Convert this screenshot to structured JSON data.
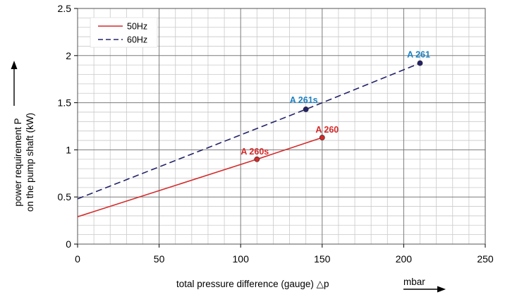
{
  "chart_data": {
    "type": "line",
    "x_ticks": [
      "0",
      "50",
      "100",
      "150",
      "200",
      "250"
    ],
    "y_ticks": [
      "0",
      "0.5",
      "1",
      "1.5",
      "2",
      "2.5"
    ],
    "xlim": [
      0,
      250
    ],
    "ylim": [
      0,
      2.5
    ],
    "x_minor_step": 10,
    "y_minor_step": 0.1,
    "grid": true,
    "legend_position": "top-left",
    "xlabel": "total pressure difference (gauge) △p",
    "x_unit": "mbar",
    "ylabel_line1": "power requirement P",
    "ylabel_line2": "on the pump shaft (kW)",
    "series": [
      {
        "name": "50Hz",
        "color": "#d42a2a",
        "style": "solid",
        "x": [
          0,
          110,
          150
        ],
        "y": [
          0.29,
          0.9,
          1.13
        ],
        "points": [
          {
            "label": "A 260s",
            "x": 110,
            "y": 0.9
          },
          {
            "label": "A 260",
            "x": 150,
            "y": 1.13
          }
        ]
      },
      {
        "name": "60Hz",
        "color": "#23236b",
        "style": "dashed",
        "x": [
          0,
          140,
          210
        ],
        "y": [
          0.48,
          1.43,
          1.92
        ],
        "points": [
          {
            "label": "A 261s",
            "x": 140,
            "y": 1.43
          },
          {
            "label": "A 261",
            "x": 210,
            "y": 1.92
          }
        ]
      }
    ],
    "point_label_colors": {
      "50Hz": "#d42a2a",
      "60Hz": "#1a7fc0"
    }
  }
}
